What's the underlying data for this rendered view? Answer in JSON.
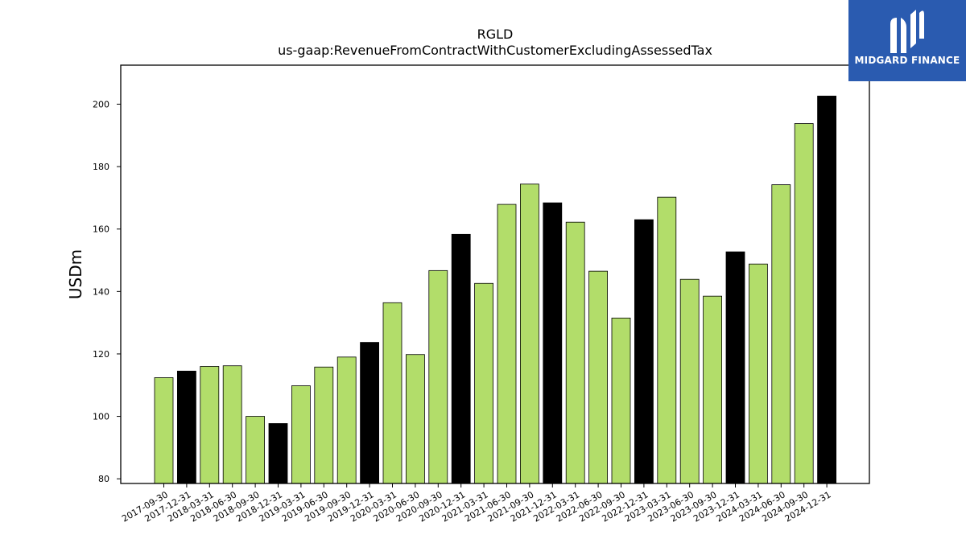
{
  "chart_data": {
    "type": "bar",
    "title": "RGLD",
    "subtitle": "us-gaap:RevenueFromContractWithCustomerExcludingAssessedTax",
    "xlabel": "",
    "ylabel": "USDm",
    "ylim": [
      78.5,
      212.5
    ],
    "yticks": [
      80,
      100,
      120,
      140,
      160,
      180,
      200
    ],
    "grid": false,
    "colors": {
      "quarter": "#b2dd6a",
      "year_end": "#000000"
    },
    "categories": [
      "2017-09-30",
      "2017-12-31",
      "2018-03-31",
      "2018-06-30",
      "2018-09-30",
      "2018-12-31",
      "2019-03-31",
      "2019-06-30",
      "2019-09-30",
      "2019-12-31",
      "2020-03-31",
      "2020-06-30",
      "2020-09-30",
      "2020-12-31",
      "2021-03-31",
      "2021-06-30",
      "2021-09-30",
      "2021-12-31",
      "2022-03-31",
      "2022-06-30",
      "2022-09-30",
      "2022-12-31",
      "2023-03-31",
      "2023-06-30",
      "2023-09-30",
      "2023-12-31",
      "2024-03-31",
      "2024-06-30",
      "2024-09-30",
      "2024-12-31"
    ],
    "values": [
      112.4,
      114.5,
      116.0,
      116.2,
      100.0,
      97.7,
      109.8,
      115.8,
      119.0,
      123.7,
      136.4,
      119.8,
      146.7,
      158.3,
      142.6,
      167.9,
      174.4,
      168.4,
      162.2,
      146.5,
      131.5,
      163.0,
      170.2,
      143.9,
      138.5,
      152.7,
      148.8,
      174.2,
      193.8,
      202.6
    ],
    "highlight": [
      false,
      true,
      false,
      false,
      false,
      true,
      false,
      false,
      false,
      true,
      false,
      false,
      false,
      true,
      false,
      false,
      false,
      true,
      false,
      false,
      false,
      true,
      false,
      false,
      false,
      true,
      false,
      false,
      false,
      true
    ]
  },
  "logo": {
    "text": "MIDGARD FINANCE",
    "icon": "midgard-logo-icon"
  }
}
